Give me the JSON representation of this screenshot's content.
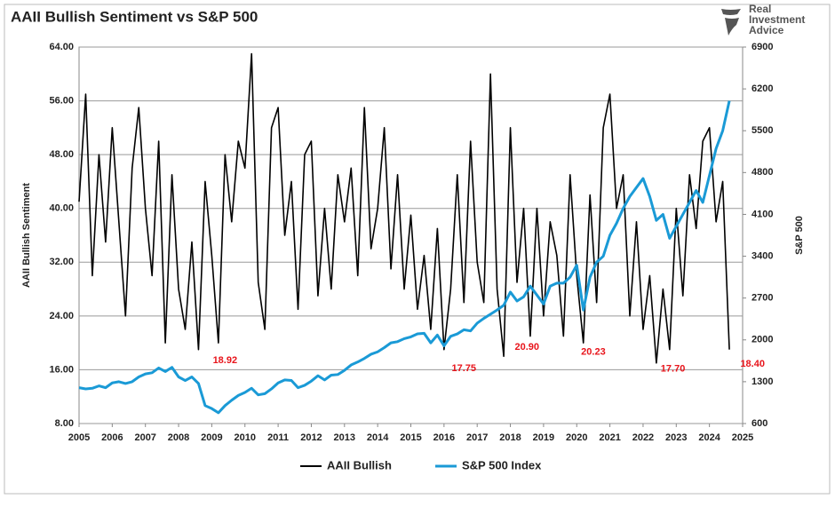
{
  "chart_data": {
    "type": "line",
    "title": "AAII Bullish Sentiment vs S&P 500",
    "logo": [
      "Real",
      "Investment",
      "Advice"
    ],
    "ylabel": "AAII Bullish Sentiment",
    "y2label": "S&P 500",
    "x": [
      2005.0,
      2005.2,
      2005.4,
      2005.6,
      2005.8,
      2006.0,
      2006.2,
      2006.4,
      2006.6,
      2006.8,
      2007.0,
      2007.2,
      2007.4,
      2007.6,
      2007.8,
      2008.0,
      2008.2,
      2008.4,
      2008.6,
      2008.8,
      2009.0,
      2009.2,
      2009.4,
      2009.6,
      2009.8,
      2010.0,
      2010.2,
      2010.4,
      2010.6,
      2010.8,
      2011.0,
      2011.2,
      2011.4,
      2011.6,
      2011.8,
      2012.0,
      2012.2,
      2012.4,
      2012.6,
      2012.8,
      2013.0,
      2013.2,
      2013.4,
      2013.6,
      2013.8,
      2014.0,
      2014.2,
      2014.4,
      2014.6,
      2014.8,
      2015.0,
      2015.2,
      2015.4,
      2015.6,
      2015.8,
      2016.0,
      2016.2,
      2016.4,
      2016.6,
      2016.8,
      2017.0,
      2017.2,
      2017.4,
      2017.6,
      2017.8,
      2018.0,
      2018.2,
      2018.4,
      2018.6,
      2018.8,
      2019.0,
      2019.2,
      2019.4,
      2019.6,
      2019.8,
      2020.0,
      2020.2,
      2020.4,
      2020.6,
      2020.8,
      2021.0,
      2021.2,
      2021.4,
      2021.6,
      2021.8,
      2022.0,
      2022.2,
      2022.4,
      2022.6,
      2022.8,
      2023.0,
      2023.2,
      2023.4,
      2023.6,
      2023.8,
      2024.0,
      2024.2,
      2024.4,
      2024.6
    ],
    "series": [
      {
        "name": "AAII Bullish",
        "color": "#000000",
        "values": [
          41,
          57,
          30,
          48,
          35,
          52,
          38,
          24,
          46,
          55,
          40,
          30,
          50,
          20,
          45,
          28,
          22,
          35,
          19,
          44,
          33,
          20,
          48,
          38,
          50,
          46,
          63,
          29,
          22,
          52,
          55,
          36,
          44,
          25,
          48,
          50,
          27,
          40,
          28,
          45,
          38,
          46,
          30,
          55,
          34,
          40,
          52,
          31,
          45,
          28,
          39,
          25,
          33,
          22,
          37,
          19,
          28,
          45,
          26,
          50,
          32,
          26,
          60,
          28,
          18,
          52,
          29,
          40,
          21,
          40,
          24,
          38,
          33,
          21,
          45,
          30,
          20,
          42,
          26,
          52,
          57,
          40,
          45,
          24,
          38,
          22,
          30,
          17,
          28,
          19,
          40,
          27,
          45,
          37,
          50,
          52,
          38,
          44,
          19
        ]
      },
      {
        "name": "S&P 500 Index",
        "color": "#1a9ad6",
        "axis": "y2",
        "values": [
          1200,
          1180,
          1190,
          1230,
          1200,
          1280,
          1300,
          1270,
          1300,
          1380,
          1430,
          1450,
          1530,
          1470,
          1540,
          1380,
          1320,
          1380,
          1270,
          900,
          850,
          780,
          900,
          990,
          1070,
          1120,
          1190,
          1080,
          1100,
          1180,
          1280,
          1330,
          1320,
          1200,
          1240,
          1310,
          1400,
          1330,
          1410,
          1420,
          1490,
          1580,
          1630,
          1690,
          1760,
          1800,
          1870,
          1950,
          1970,
          2020,
          2050,
          2100,
          2110,
          1950,
          2080,
          1900,
          2060,
          2100,
          2170,
          2150,
          2280,
          2360,
          2430,
          2500,
          2580,
          2800,
          2650,
          2720,
          2900,
          2750,
          2600,
          2900,
          2950,
          2950,
          3050,
          3250,
          2500,
          3050,
          3300,
          3400,
          3750,
          3950,
          4200,
          4400,
          4550,
          4700,
          4400,
          4000,
          4100,
          3700,
          3900,
          4100,
          4300,
          4500,
          4300,
          4750,
          5200,
          5500,
          6000
        ]
      }
    ],
    "xlim": [
      2005,
      2025
    ],
    "xticks": [
      2005,
      2006,
      2007,
      2008,
      2009,
      2010,
      2011,
      2012,
      2013,
      2014,
      2015,
      2016,
      2017,
      2018,
      2019,
      2020,
      2021,
      2022,
      2023,
      2024,
      2025
    ],
    "ylim": [
      8,
      64
    ],
    "yticks": [
      {
        "value": 8,
        "label": "8.00"
      },
      {
        "value": 16,
        "label": "16.00"
      },
      {
        "value": 24,
        "label": "24.00"
      },
      {
        "value": 32,
        "label": "32.00"
      },
      {
        "value": 40,
        "label": "40.00"
      },
      {
        "value": 48,
        "label": "48.00"
      },
      {
        "value": 56,
        "label": "56.00"
      },
      {
        "value": 64,
        "label": "64.00"
      }
    ],
    "y2lim": [
      600,
      6900
    ],
    "y2ticks": [
      600,
      1300,
      2000,
      2700,
      3400,
      4100,
      4800,
      5500,
      6200,
      6900
    ],
    "grid": true,
    "annotations": [
      {
        "x": 2009.4,
        "value": 18.92,
        "label": "18.92"
      },
      {
        "x": 2016.6,
        "value": 17.75,
        "label": "17.75"
      },
      {
        "x": 2018.5,
        "value": 20.9,
        "label": "20.90"
      },
      {
        "x": 2020.5,
        "value": 20.23,
        "label": "20.23"
      },
      {
        "x": 2022.9,
        "value": 17.7,
        "label": "17.70"
      },
      {
        "x": 2025.3,
        "value": 18.4,
        "label": "18.40"
      }
    ]
  }
}
